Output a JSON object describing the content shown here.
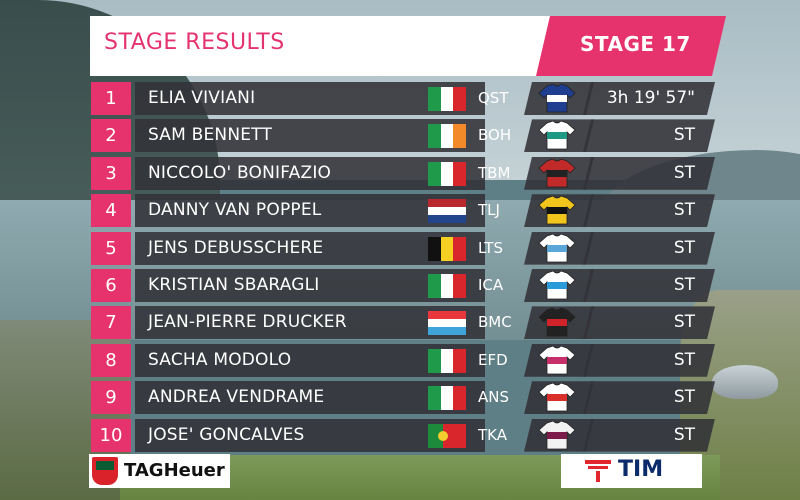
{
  "header": {
    "title": "STAGE RESULTS",
    "stage": "STAGE 17"
  },
  "results": [
    {
      "position": "1",
      "rider": "ELIA VIVIANI",
      "team": "QST",
      "time": "3h 19' 57\"",
      "flag": "italy"
    },
    {
      "position": "2",
      "rider": "SAM BENNETT",
      "team": "BOH",
      "time": "ST",
      "flag": "ireland"
    },
    {
      "position": "3",
      "rider": "NICCOLO' BONIFAZIO",
      "team": "TBM",
      "time": "ST",
      "flag": "italy"
    },
    {
      "position": "4",
      "rider": "DANNY VAN POPPEL",
      "team": "TLJ",
      "time": "ST",
      "flag": "netherlands"
    },
    {
      "position": "5",
      "rider": "JENS DEBUSSCHERE",
      "team": "LTS",
      "time": "ST",
      "flag": "belgium"
    },
    {
      "position": "6",
      "rider": "KRISTIAN SBARAGLI",
      "team": "ICA",
      "time": "ST",
      "flag": "italy"
    },
    {
      "position": "7",
      "rider": "JEAN-PIERRE DRUCKER",
      "team": "BMC",
      "time": "ST",
      "flag": "luxembourg"
    },
    {
      "position": "8",
      "rider": "SACHA MODOLO",
      "team": "EFD",
      "time": "ST",
      "flag": "italy"
    },
    {
      "position": "9",
      "rider": "ANDREA VENDRAME",
      "team": "ANS",
      "time": "ST",
      "flag": "italy"
    },
    {
      "position": "10",
      "rider": "JOSE' GONCALVES",
      "team": "TKA",
      "time": "ST",
      "flag": "portugal"
    }
  ],
  "sponsors": {
    "left": "TAGHeuer",
    "right": "TIM"
  },
  "colors": {
    "accent": "#e6336d",
    "row_bg": "#323238",
    "title_text": "#e5336f"
  }
}
